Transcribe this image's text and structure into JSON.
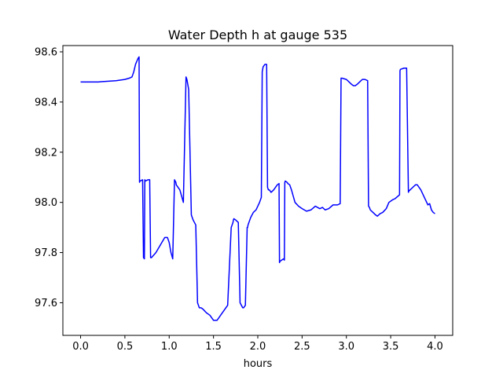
{
  "chart_data": {
    "type": "line",
    "title": "Water Depth h at gauge 535",
    "xlabel": "hours",
    "ylabel": "",
    "xlim": [
      -0.2,
      4.2
    ],
    "ylim": [
      97.47,
      98.625
    ],
    "xticks": [
      0.0,
      0.5,
      1.0,
      1.5,
      2.0,
      2.5,
      3.0,
      3.5,
      4.0
    ],
    "xtick_labels": [
      "0.0",
      "0.5",
      "1.0",
      "1.5",
      "2.0",
      "2.5",
      "3.0",
      "3.5",
      "4.0"
    ],
    "yticks": [
      97.6,
      97.8,
      98.0,
      98.2,
      98.4,
      98.6
    ],
    "ytick_labels": [
      "97.6",
      "97.8",
      "98.0",
      "98.2",
      "98.4",
      "98.6"
    ],
    "grid": false,
    "legend": "none",
    "series": [
      {
        "color": "#0000ff",
        "x": [
          0.0,
          0.2,
          0.4,
          0.5,
          0.55,
          0.58,
          0.6,
          0.62,
          0.65,
          0.66,
          0.665,
          0.67,
          0.7,
          0.71,
          0.72,
          0.725,
          0.73,
          0.76,
          0.78,
          0.79,
          0.8,
          0.85,
          0.9,
          0.95,
          0.98,
          1.0,
          1.02,
          1.04,
          1.06,
          1.075,
          1.08,
          1.09,
          1.1,
          1.12,
          1.16,
          1.19,
          1.2,
          1.21,
          1.22,
          1.25,
          1.26,
          1.27,
          1.3,
          1.32,
          1.33,
          1.34,
          1.36,
          1.38,
          1.42,
          1.46,
          1.5,
          1.54,
          1.56,
          1.58,
          1.62,
          1.66,
          1.7,
          1.72,
          1.725,
          1.73,
          1.75,
          1.78,
          1.8,
          1.83,
          1.84,
          1.86,
          1.88,
          1.885,
          1.89,
          1.92,
          1.95,
          1.98,
          2.02,
          2.04,
          2.05,
          2.06,
          2.08,
          2.1,
          2.11,
          2.12,
          2.13,
          2.15,
          2.18,
          2.22,
          2.24,
          2.245,
          2.25,
          2.27,
          2.29,
          2.3,
          2.305,
          2.31,
          2.33,
          2.34,
          2.36,
          2.38,
          2.42,
          2.46,
          2.5,
          2.55,
          2.6,
          2.65,
          2.7,
          2.73,
          2.76,
          2.8,
          2.85,
          2.9,
          2.93,
          2.94,
          2.95,
          3.0,
          3.03,
          3.06,
          3.08,
          3.1,
          3.12,
          3.15,
          3.18,
          3.21,
          3.24,
          3.25,
          3.26,
          3.27,
          3.3,
          3.33,
          3.35,
          3.38,
          3.41,
          3.45,
          3.48,
          3.52,
          3.55,
          3.6,
          3.605,
          3.61,
          3.65,
          3.68,
          3.7,
          3.705,
          3.72,
          3.75,
          3.78,
          3.8,
          3.84,
          3.88,
          3.92,
          3.94,
          3.96,
          3.98,
          4.0
        ],
        "y": [
          98.48,
          98.48,
          98.485,
          98.49,
          98.495,
          98.5,
          98.52,
          98.55,
          98.575,
          98.58,
          98.08,
          98.085,
          98.09,
          97.78,
          97.775,
          98.09,
          98.085,
          98.09,
          98.09,
          97.78,
          97.78,
          97.8,
          97.83,
          97.86,
          97.86,
          97.84,
          97.8,
          97.775,
          98.09,
          98.08,
          98.07,
          98.065,
          98.06,
          98.05,
          98.0,
          98.5,
          98.49,
          98.47,
          98.45,
          97.95,
          97.94,
          97.93,
          97.91,
          97.6,
          97.59,
          97.58,
          97.58,
          97.575,
          97.56,
          97.55,
          97.53,
          97.53,
          97.54,
          97.55,
          97.57,
          97.59,
          97.9,
          97.92,
          97.93,
          97.935,
          97.93,
          97.92,
          97.6,
          97.58,
          97.58,
          97.59,
          97.9,
          97.9,
          97.91,
          97.94,
          97.96,
          97.97,
          98.0,
          98.02,
          98.52,
          98.54,
          98.55,
          98.55,
          98.06,
          98.05,
          98.05,
          98.04,
          98.05,
          98.07,
          98.075,
          97.76,
          97.765,
          97.77,
          97.775,
          97.77,
          98.08,
          98.085,
          98.08,
          98.075,
          98.07,
          98.05,
          98.0,
          97.985,
          97.975,
          97.965,
          97.97,
          97.985,
          97.975,
          97.98,
          97.97,
          97.975,
          97.99,
          97.99,
          97.995,
          98.495,
          98.495,
          98.49,
          98.48,
          98.47,
          98.465,
          98.465,
          98.47,
          98.48,
          98.49,
          98.49,
          98.485,
          97.985,
          97.98,
          97.97,
          97.96,
          97.95,
          97.945,
          97.955,
          97.96,
          97.975,
          98.0,
          98.01,
          98.015,
          98.03,
          98.525,
          98.53,
          98.535,
          98.535,
          98.04,
          98.045,
          98.05,
          98.06,
          98.07,
          98.07,
          98.05,
          98.02,
          97.99,
          97.995,
          97.97,
          97.96,
          97.955
        ]
      }
    ]
  }
}
